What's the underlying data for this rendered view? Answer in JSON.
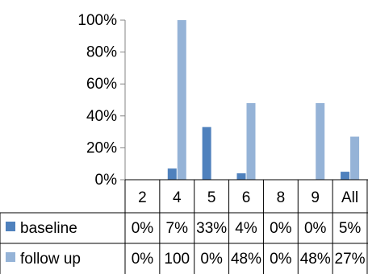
{
  "chart_data": {
    "type": "bar",
    "title": "",
    "xlabel": "",
    "ylabel": "",
    "categories": [
      "2",
      "4",
      "5",
      "6",
      "8",
      "9",
      "All"
    ],
    "series": [
      {
        "name": "baseline",
        "values": [
          0,
          7,
          33,
          4,
          0,
          0,
          5
        ],
        "labels": [
          "0%",
          "7%",
          "33%",
          "4%",
          "0%",
          "0%",
          "5%"
        ],
        "color": "#4F81BD"
      },
      {
        "name": "follow up",
        "values": [
          0,
          100,
          0,
          48,
          0,
          48,
          27
        ],
        "labels": [
          "0%",
          "100",
          "0%",
          "48%",
          "0%",
          "48%",
          "27%"
        ],
        "color": "#95B3D7"
      }
    ],
    "ylim": [
      0,
      100
    ],
    "yticks": [
      "0%",
      "20%",
      "40%",
      "60%",
      "80%",
      "100%"
    ],
    "grid": false,
    "legend": "data table"
  }
}
